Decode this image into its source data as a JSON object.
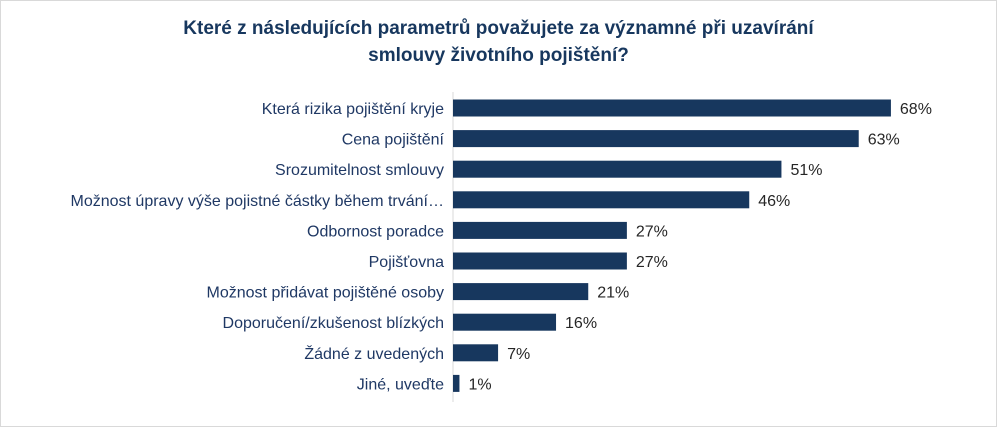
{
  "chart_data": {
    "type": "bar",
    "orientation": "horizontal",
    "title_lines": [
      "Které z následujících parametrů považujete za významné při uzavírání",
      "smlouvy životního pojištění?"
    ],
    "categories": [
      "Která rizika pojištění kryje",
      "Cena pojištění",
      "Srozumitelnost smlouvy",
      "Možnost úpravy výše pojistné částky během trvání…",
      "Odbornost poradce",
      "Pojišťovna",
      "Možnost přidávat pojištěné osoby",
      "Doporučení/zkušenost blízkých",
      "Žádné z uvedených",
      "Jiné, uveďte"
    ],
    "values": [
      68,
      63,
      51,
      46,
      27,
      27,
      21,
      16,
      7,
      1
    ],
    "value_labels": [
      "68%",
      "63%",
      "51%",
      "46%",
      "27%",
      "27%",
      "21%",
      "16%",
      "7%",
      "1%"
    ],
    "unit": "%",
    "bar_color": "#17375e",
    "grid": false,
    "legend": "none"
  }
}
